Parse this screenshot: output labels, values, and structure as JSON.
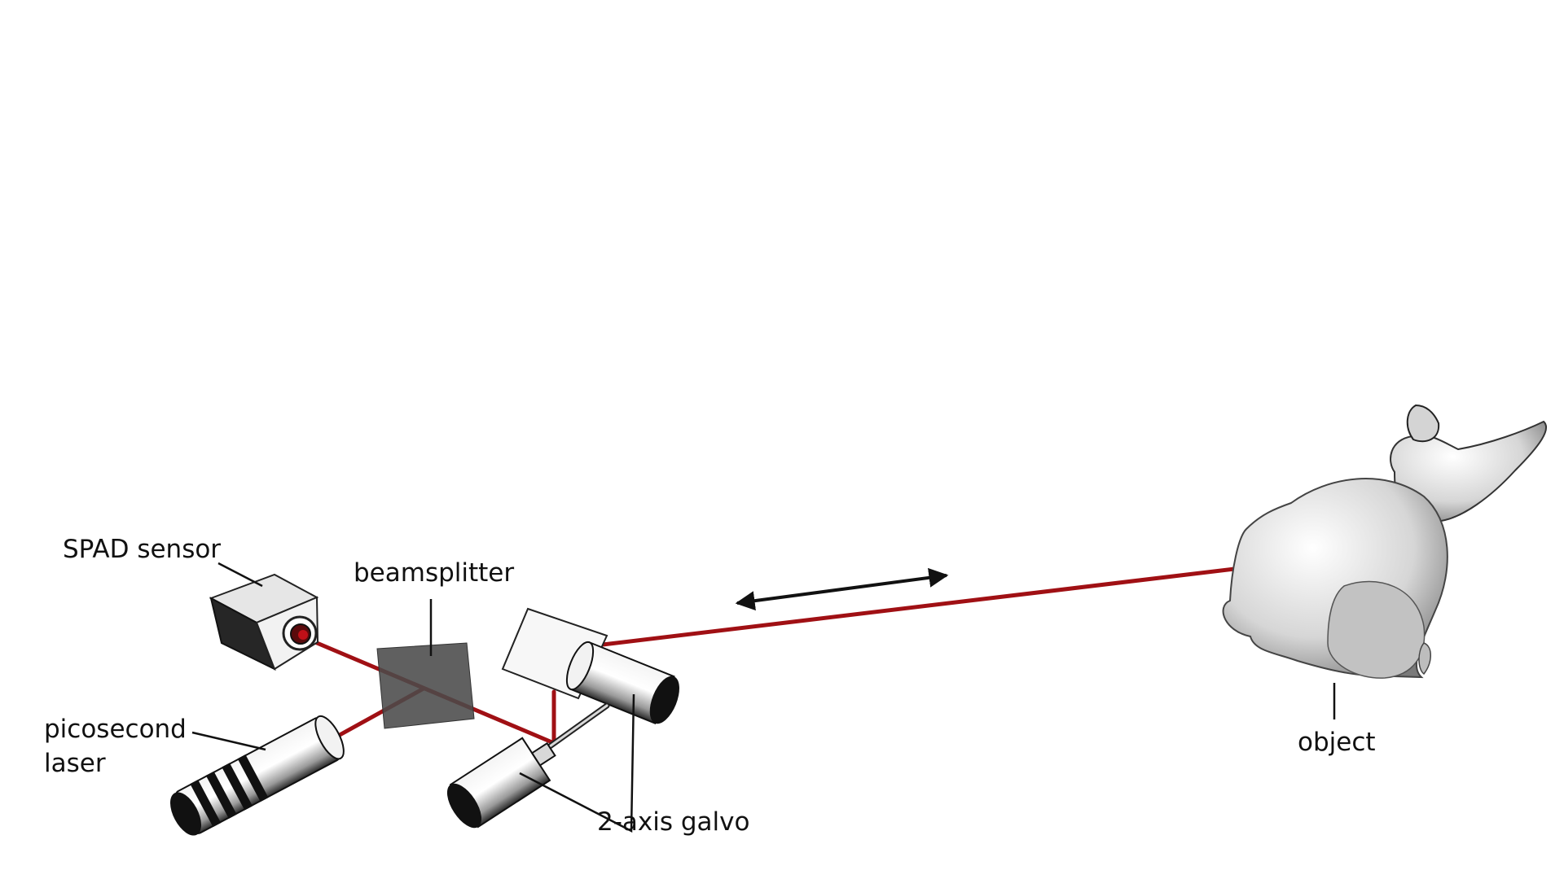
{
  "labels": {
    "spad_sensor": "SPAD sensor",
    "beamsplitter": "beamsplitter",
    "laser_line1": "picosecond",
    "laser_line2": "laser",
    "galvo": "2-axis galvo",
    "object": "object"
  },
  "colors": {
    "beam": "#a01014",
    "leader": "#111111",
    "background": "#ffffff"
  },
  "icons": [
    "spad-sensor-icon",
    "beamsplitter-icon",
    "picosecond-laser-icon",
    "galvo-mirror-icon",
    "bunny-object-icon",
    "double-arrow-icon"
  ]
}
